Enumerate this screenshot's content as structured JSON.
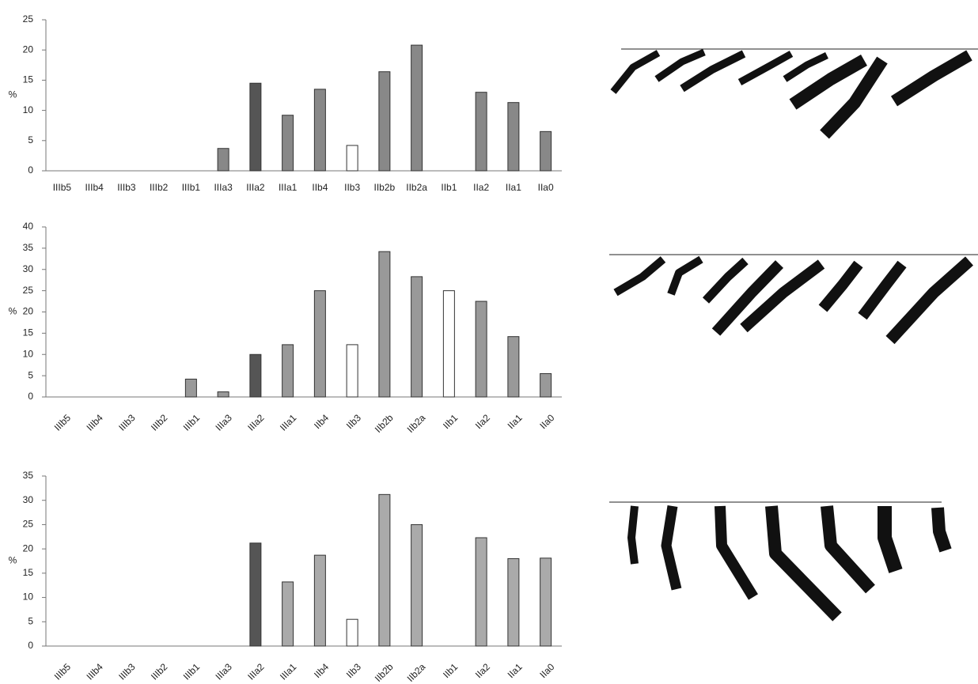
{
  "chart_data": [
    {
      "type": "bar",
      "ylabel": "%",
      "categories": [
        "IIIb5",
        "IIIb4",
        "IIIb3",
        "IIIb2",
        "IIIb1",
        "IIIa3",
        "IIIa2",
        "IIIa1",
        "IIb4",
        "IIb3",
        "IIb2b",
        "IIb2a",
        "IIb1",
        "IIa2",
        "IIa1",
        "IIa0"
      ],
      "series": [
        {
          "values": [
            0,
            0,
            0,
            0,
            0,
            3.7,
            14.5,
            9.2,
            13.5,
            4.2,
            16.4,
            20.8,
            0,
            13,
            11.3,
            6.5
          ],
          "colors": [
            "#888888",
            "#888888",
            "#888888",
            "#888888",
            "#888888",
            "#888888",
            "#555555",
            "#888888",
            "#888888",
            "#ffffff",
            "#888888",
            "#888888",
            "#888888",
            "#888888",
            "#888888",
            "#888888"
          ]
        }
      ],
      "ylim": [
        0,
        25
      ],
      "yticks": [
        0,
        5,
        10,
        15,
        20,
        25
      ],
      "x_label_rotation": 0
    },
    {
      "type": "bar",
      "ylabel": "%",
      "categories": [
        "IIIb5",
        "IIIb4",
        "IIIb3",
        "IIIb2",
        "IIIb1",
        "IIIa3",
        "IIIa2",
        "IIIa1",
        "IIb4",
        "IIb3",
        "IIb2b",
        "IIb2a",
        "IIb1",
        "IIa2",
        "IIa1",
        "IIa0"
      ],
      "series": [
        {
          "values": [
            0,
            0,
            0,
            0,
            4.2,
            1.2,
            10,
            12.3,
            25,
            12.3,
            34.2,
            28.3,
            25,
            22.5,
            14.2,
            5.5
          ],
          "colors": [
            "#999999",
            "#999999",
            "#999999",
            "#999999",
            "#999999",
            "#999999",
            "#555555",
            "#999999",
            "#999999",
            "#ffffff",
            "#999999",
            "#999999",
            "#ffffff",
            "#999999",
            "#999999",
            "#999999"
          ]
        }
      ],
      "ylim": [
        0,
        40
      ],
      "yticks": [
        0,
        5,
        10,
        15,
        20,
        25,
        30,
        35,
        40
      ],
      "x_label_rotation": -45
    },
    {
      "type": "bar",
      "ylabel": "%",
      "categories": [
        "IIIb5",
        "IIIb4",
        "IIIb3",
        "IIIb2",
        "IIIb1",
        "IIIa3",
        "IIIa2",
        "IIIa1",
        "IIb4",
        "IIb3",
        "IIb2b",
        "IIb2a",
        "IIb1",
        "IIa2",
        "IIa1",
        "IIa0"
      ],
      "series": [
        {
          "values": [
            0,
            0,
            0,
            0,
            0,
            0,
            21.2,
            13.2,
            18.7,
            5.5,
            31.2,
            25,
            0,
            22.3,
            18,
            18.1
          ],
          "colors": [
            "#aaaaaa",
            "#aaaaaa",
            "#aaaaaa",
            "#aaaaaa",
            "#aaaaaa",
            "#aaaaaa",
            "#555555",
            "#aaaaaa",
            "#aaaaaa",
            "#ffffff",
            "#aaaaaa",
            "#aaaaaa",
            "#aaaaaa",
            "#aaaaaa",
            "#aaaaaa",
            "#aaaaaa"
          ]
        }
      ],
      "ylim": [
        0,
        35
      ],
      "yticks": [
        0,
        5,
        10,
        15,
        20,
        25,
        30,
        35
      ],
      "x_label_rotation": -45
    }
  ]
}
